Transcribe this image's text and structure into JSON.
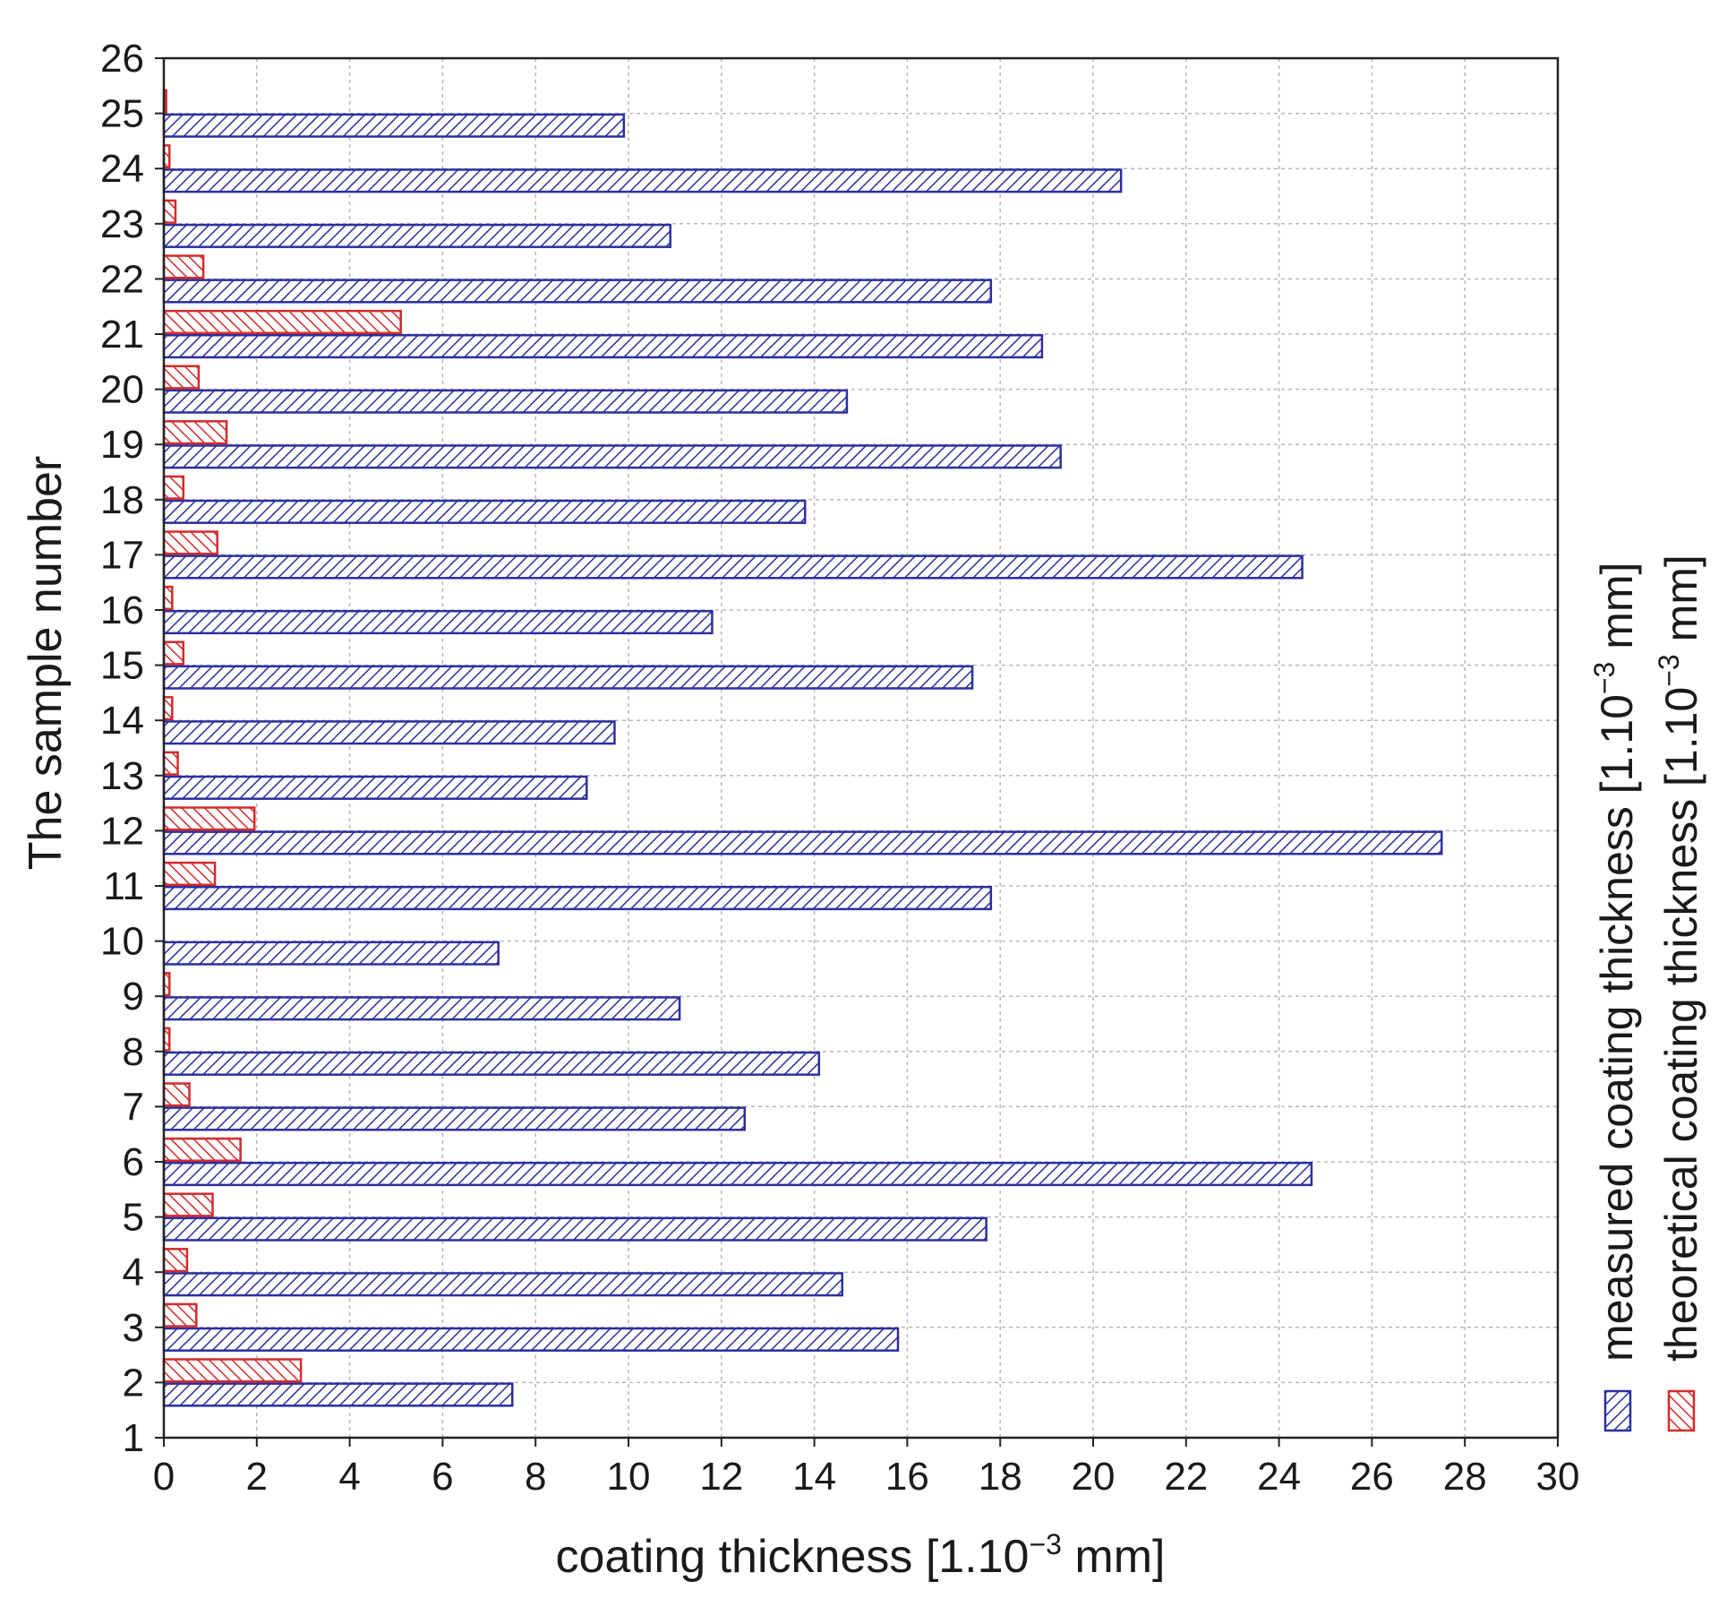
{
  "chart_data": {
    "type": "bar",
    "orientation": "horizontal",
    "title": "",
    "xlabel": {
      "prefix": "coating thickness [1.10",
      "exponent": "−3",
      "suffix": " mm]"
    },
    "ylabel": "The sample number",
    "xlim": [
      0,
      30
    ],
    "ylim": [
      1,
      26
    ],
    "x_ticks": [
      "0",
      "2",
      "4",
      "6",
      "8",
      "10",
      "12",
      "14",
      "16",
      "18",
      "20",
      "22",
      "24",
      "26",
      "28",
      "30"
    ],
    "y_ticks": [
      "1",
      "2",
      "3",
      "4",
      "5",
      "6",
      "7",
      "8",
      "9",
      "10",
      "11",
      "12",
      "13",
      "14",
      "15",
      "16",
      "17",
      "18",
      "19",
      "20",
      "21",
      "22",
      "23",
      "24",
      "25",
      "26"
    ],
    "grid": true,
    "legend_position": "right, rotated vertical",
    "categories": [
      "2",
      "3",
      "4",
      "5",
      "6",
      "7",
      "8",
      "9",
      "10",
      "11",
      "12",
      "13",
      "14",
      "15",
      "16",
      "17",
      "18",
      "19",
      "20",
      "21",
      "22",
      "23",
      "24",
      "25"
    ],
    "series": [
      {
        "name": "measured coating thickness",
        "unit_label": {
          "prefix": "measured coating thickness [1.10",
          "exponent": "−3",
          "suffix": " mm]"
        },
        "color": "#2b2fa0",
        "hatch": "diagonal-up",
        "values": [
          7.5,
          15.8,
          14.6,
          17.7,
          24.7,
          12.5,
          14.1,
          11.1,
          7.2,
          17.8,
          27.5,
          9.1,
          9.7,
          17.4,
          11.8,
          24.5,
          13.8,
          19.3,
          14.7,
          18.9,
          17.8,
          10.9,
          20.6,
          9.9
        ]
      },
      {
        "name": "theoretical coating thickness",
        "unit_label": {
          "prefix": "theoretical coating thickness [1.10",
          "exponent": "−3",
          "suffix": " mm]"
        },
        "color": "#d42a2a",
        "hatch": "diagonal-down",
        "values": [
          2.95,
          0.7,
          0.5,
          1.05,
          1.65,
          0.55,
          0.12,
          0.12,
          0.0,
          1.1,
          1.95,
          0.3,
          0.18,
          0.42,
          0.18,
          1.15,
          0.42,
          1.35,
          0.75,
          5.1,
          0.85,
          0.25,
          0.12,
          0.05
        ]
      }
    ]
  }
}
